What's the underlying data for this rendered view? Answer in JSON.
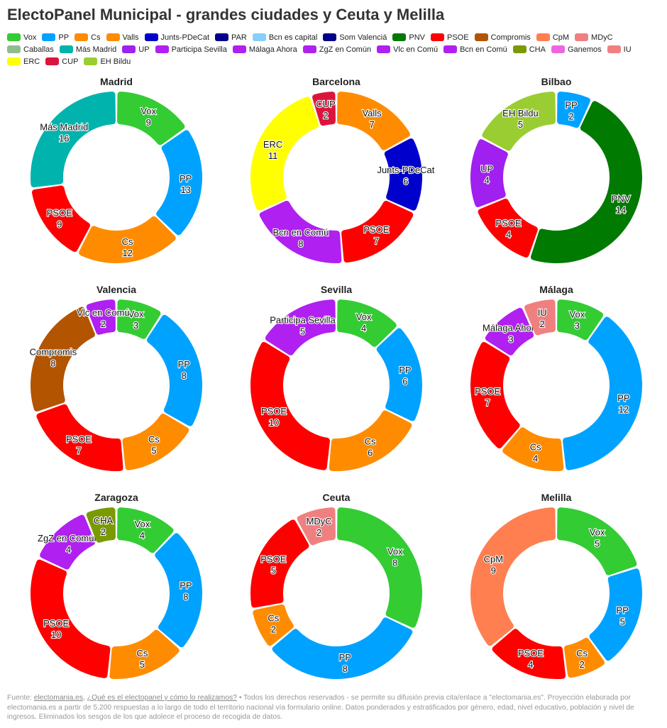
{
  "title": "ElectoPanel Municipal - grandes ciudades y Ceuta y Melilla",
  "legend": [
    {
      "name": "Vox",
      "color": "#33cc33"
    },
    {
      "name": "PP",
      "color": "#00a2ff"
    },
    {
      "name": "Cs",
      "color": "#ff8c00"
    },
    {
      "name": "Valls",
      "color": "#ff8c00"
    },
    {
      "name": "Junts-PDeCat",
      "color": "#0000cc"
    },
    {
      "name": "PAR",
      "color": "#00008b"
    },
    {
      "name": "Bcn es capital",
      "color": "#87cefa"
    },
    {
      "name": "Som Valenciá",
      "color": "#00008b"
    },
    {
      "name": "PNV",
      "color": "#007a00"
    },
    {
      "name": "PSOE",
      "color": "#ff0000"
    },
    {
      "name": "Compromis",
      "color": "#b25400"
    },
    {
      "name": "CpM",
      "color": "#ff7f50"
    },
    {
      "name": "MDyC",
      "color": "#f08080"
    },
    {
      "name": "Caballas",
      "color": "#8fbc8f"
    },
    {
      "name": "Más Madrid",
      "color": "#00b3ad"
    },
    {
      "name": "UP",
      "color": "#a020f0"
    },
    {
      "name": "Participa Sevilla",
      "color": "#b020f0"
    },
    {
      "name": "Málaga Ahora",
      "color": "#b020f0"
    },
    {
      "name": "ZgZ en Común",
      "color": "#b020f0"
    },
    {
      "name": "Vlc en Comú",
      "color": "#b020f0"
    },
    {
      "name": "Bcn en Comú",
      "color": "#b020f0"
    },
    {
      "name": "CHA",
      "color": "#7a9a01"
    },
    {
      "name": "Ganemos",
      "color": "#ee66dd"
    },
    {
      "name": "IU",
      "color": "#f08080"
    },
    {
      "name": "ERC",
      "color": "#ffff00"
    },
    {
      "name": "CUP",
      "color": "#dc143c"
    },
    {
      "name": "EH Bildu",
      "color": "#9acd32"
    }
  ],
  "chart_data": [
    {
      "type": "pie",
      "title": "Madrid",
      "slices": [
        {
          "label": "Vox",
          "value": 9,
          "color": "#33cc33"
        },
        {
          "label": "PP",
          "value": 13,
          "color": "#00a2ff"
        },
        {
          "label": "Cs",
          "value": 12,
          "color": "#ff8c00"
        },
        {
          "label": "PSOE",
          "value": 9,
          "color": "#ff0000"
        },
        {
          "label": "Más Madrid",
          "value": 16,
          "color": "#00b3ad"
        }
      ]
    },
    {
      "type": "pie",
      "title": "Barcelona",
      "slices": [
        {
          "label": "Valls",
          "value": 7,
          "color": "#ff8c00"
        },
        {
          "label": "Junts-PDeCat",
          "value": 6,
          "color": "#0000cc"
        },
        {
          "label": "PSOE",
          "value": 7,
          "color": "#ff0000"
        },
        {
          "label": "Bcn en Comú",
          "value": 8,
          "color": "#b020f0"
        },
        {
          "label": "ERC",
          "value": 11,
          "color": "#ffff00"
        },
        {
          "label": "CUP",
          "value": 2,
          "color": "#dc143c"
        }
      ]
    },
    {
      "type": "pie",
      "title": "Bilbao",
      "slices": [
        {
          "label": "PP",
          "value": 2,
          "color": "#00a2ff"
        },
        {
          "label": "PNV",
          "value": 14,
          "color": "#007a00"
        },
        {
          "label": "PSOE",
          "value": 4,
          "color": "#ff0000"
        },
        {
          "label": "UP",
          "value": 4,
          "color": "#a020f0"
        },
        {
          "label": "EH Bildu",
          "value": 5,
          "color": "#9acd32"
        }
      ]
    },
    {
      "type": "pie",
      "title": "Valencia",
      "slices": [
        {
          "label": "Vox",
          "value": 3,
          "color": "#33cc33"
        },
        {
          "label": "PP",
          "value": 8,
          "color": "#00a2ff"
        },
        {
          "label": "Cs",
          "value": 5,
          "color": "#ff8c00"
        },
        {
          "label": "PSOE",
          "value": 7,
          "color": "#ff0000"
        },
        {
          "label": "Compromis",
          "value": 8,
          "color": "#b25400"
        },
        {
          "label": "Vlc en Comú",
          "value": 2,
          "color": "#b020f0"
        }
      ]
    },
    {
      "type": "pie",
      "title": "Sevilla",
      "slices": [
        {
          "label": "Vox",
          "value": 4,
          "color": "#33cc33"
        },
        {
          "label": "PP",
          "value": 6,
          "color": "#00a2ff"
        },
        {
          "label": "Cs",
          "value": 6,
          "color": "#ff8c00"
        },
        {
          "label": "PSOE",
          "value": 10,
          "color": "#ff0000"
        },
        {
          "label": "Participa Sevilla",
          "value": 5,
          "color": "#b020f0"
        }
      ]
    },
    {
      "type": "pie",
      "title": "Málaga",
      "slices": [
        {
          "label": "Vox",
          "value": 3,
          "color": "#33cc33"
        },
        {
          "label": "PP",
          "value": 12,
          "color": "#00a2ff"
        },
        {
          "label": "Cs",
          "value": 4,
          "color": "#ff8c00"
        },
        {
          "label": "PSOE",
          "value": 7,
          "color": "#ff0000"
        },
        {
          "label": "Málaga Ahora",
          "value": 3,
          "color": "#b020f0"
        },
        {
          "label": "IU",
          "value": 2,
          "color": "#f08080"
        }
      ]
    },
    {
      "type": "pie",
      "title": "Zaragoza",
      "slices": [
        {
          "label": "Vox",
          "value": 4,
          "color": "#33cc33"
        },
        {
          "label": "PP",
          "value": 8,
          "color": "#00a2ff"
        },
        {
          "label": "Cs",
          "value": 5,
          "color": "#ff8c00"
        },
        {
          "label": "PSOE",
          "value": 10,
          "color": "#ff0000"
        },
        {
          "label": "ZgZ en Común",
          "value": 4,
          "color": "#b020f0"
        },
        {
          "label": "CHA",
          "value": 2,
          "color": "#7a9a01"
        }
      ]
    },
    {
      "type": "pie",
      "title": "Ceuta",
      "slices": [
        {
          "label": "Vox",
          "value": 8,
          "color": "#33cc33"
        },
        {
          "label": "PP",
          "value": 8,
          "color": "#00a2ff"
        },
        {
          "label": "Cs",
          "value": 2,
          "color": "#ff8c00"
        },
        {
          "label": "PSOE",
          "value": 5,
          "color": "#ff0000"
        },
        {
          "label": "MDyC",
          "value": 2,
          "color": "#f08080"
        }
      ]
    },
    {
      "type": "pie",
      "title": "Melilla",
      "slices": [
        {
          "label": "Vox",
          "value": 5,
          "color": "#33cc33"
        },
        {
          "label": "PP",
          "value": 5,
          "color": "#00a2ff"
        },
        {
          "label": "Cs",
          "value": 2,
          "color": "#ff8c00"
        },
        {
          "label": "PSOE",
          "value": 4,
          "color": "#ff0000"
        },
        {
          "label": "CpM",
          "value": 9,
          "color": "#ff7f50"
        }
      ]
    }
  ],
  "footer": {
    "prefix": "Fuente: ",
    "link1": "electomania.es",
    "sep": ", ",
    "link2": "¿Qué es el electopanel y cómo lo realizamos?",
    "rest": " • Todos los derechos reservados - se permite su difusión previa cita/enlace a \"electomania.es\". Proyección elaborada por electomania.es a partir de 5.200 respuestas a lo largo de todo el territorio nacional vía formulario online. Datos ponderados y estratificados por género, edad, nivel educativo, población y nivel de ingresos. Eliminados los sesgos de los que adolece el proceso de recogida de datos."
  }
}
